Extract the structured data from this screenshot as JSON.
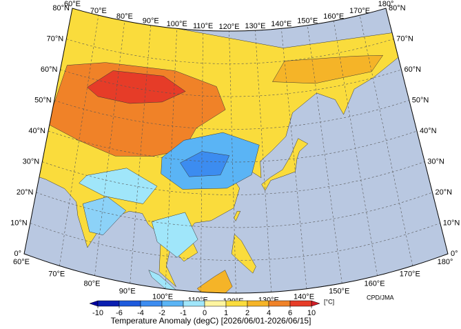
{
  "map": {
    "title": "Temperature Anomaly (degC) [2026/06/01-2026/06/15]",
    "credit": "CPD/JMA",
    "top_lon_labels": [
      "60°E",
      "70°E",
      "80°E",
      "90°E",
      "100°E",
      "110°E",
      "120°E",
      "130°E",
      "140°E",
      "150°E",
      "160°E",
      "170°E",
      "180°"
    ],
    "bottom_lon_labels": [
      "60°E",
      "70°E",
      "80°E",
      "90°E",
      "100°E",
      "110°E",
      "120°E",
      "130°E",
      "140°E",
      "150°E",
      "160°E",
      "170°E",
      "180°"
    ],
    "left_lat_labels": [
      "0°",
      "10°N",
      "20°N",
      "30°N",
      "40°N",
      "50°N",
      "60°N",
      "70°N",
      "80°N"
    ],
    "right_lat_labels": [
      "0°",
      "10°N",
      "20°N",
      "30°N",
      "40°N",
      "50°N",
      "60°N",
      "70°N",
      "80°N"
    ],
    "colorbar": {
      "unit": "[°C]",
      "ticks": [
        -10,
        -6,
        -4,
        -2,
        -1,
        0,
        1,
        2,
        4,
        6,
        10
      ],
      "colors": [
        "#0a1fb0",
        "#1e5adc",
        "#3c8cf0",
        "#5ab4f5",
        "#a0e6fa",
        "#fff5a0",
        "#fadc3c",
        "#f5b428",
        "#f08228",
        "#e63c28"
      ],
      "under_color": "#0000a0",
      "over_color": "#d21e28"
    }
  }
}
